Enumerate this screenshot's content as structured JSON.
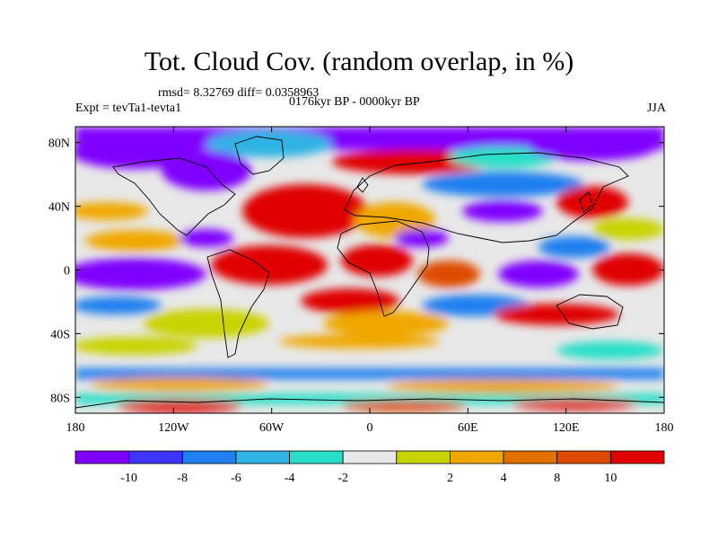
{
  "title": "Tot. Cloud Cov. (random overlap, in %)",
  "stats_line": "rmsd= 8.32769 diff= 0.0358963",
  "period_line": "0176kyr BP - 0000kyr BP",
  "experiment": "Expt = tevTa1-tevta1",
  "season": "JJA",
  "map": {
    "lon_range": [
      -180,
      180
    ],
    "lat_range": [
      -90,
      90
    ],
    "x_ticks": [
      {
        "value": -180,
        "label": "180"
      },
      {
        "value": -120,
        "label": "120W"
      },
      {
        "value": -60,
        "label": "60W"
      },
      {
        "value": 0,
        "label": "0"
      },
      {
        "value": 60,
        "label": "60E"
      },
      {
        "value": 120,
        "label": "120E"
      },
      {
        "value": 180,
        "label": "180"
      }
    ],
    "y_ticks": [
      {
        "value": 80,
        "label": "80N"
      },
      {
        "value": 40,
        "label": "40N"
      },
      {
        "value": 0,
        "label": "0"
      },
      {
        "value": -40,
        "label": "40S"
      },
      {
        "value": -80,
        "label": "80S"
      }
    ]
  },
  "colorbar": {
    "colors": [
      "#7f00ff",
      "#3f33ff",
      "#1f7fef",
      "#2fb4e4",
      "#27dfc8",
      "#e8e8e8",
      "#c9d300",
      "#f0a800",
      "#e07000",
      "#de4b00",
      "#e00000"
    ],
    "tick_labels": [
      "-10",
      "-8",
      "-6",
      "-4",
      "-2",
      "2",
      "4",
      "8",
      "10"
    ]
  }
}
